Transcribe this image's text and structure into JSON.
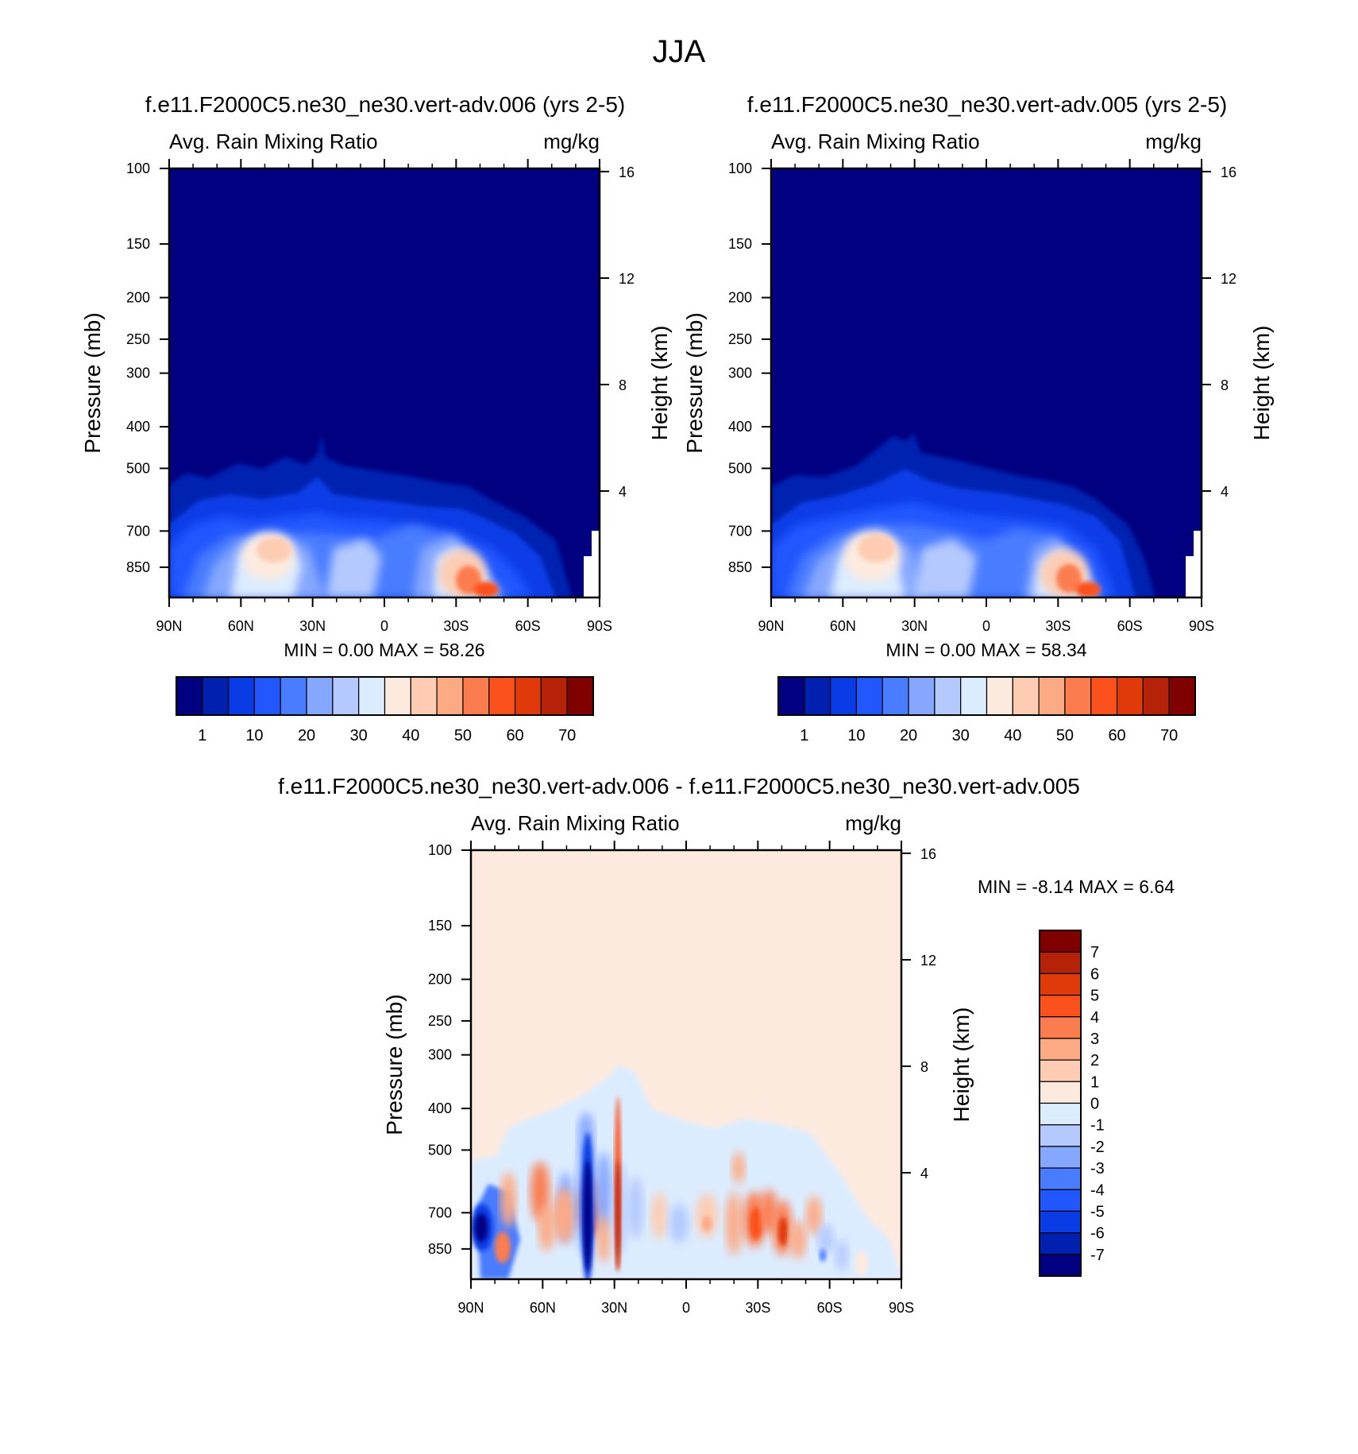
{
  "title": "JJA",
  "colors": {
    "seq": [
      "#000080",
      "#0020b0",
      "#0a3ce6",
      "#2257ff",
      "#4a7cff",
      "#86a7ff",
      "#b4c9ff",
      "#dcecff",
      "#fdeade",
      "#fdccb3",
      "#fcaa84",
      "#fb7d4f",
      "#fb511d",
      "#e03a0a",
      "#b52208",
      "#800000"
    ],
    "diff": [
      "#000080",
      "#0020b0",
      "#0a3ce6",
      "#2257ff",
      "#4a7cff",
      "#86a7ff",
      "#b4c9ff",
      "#dcecff",
      "#fdeade",
      "#fdccb3",
      "#fcaa84",
      "#fb7d4f",
      "#fb511d",
      "#e03a0a",
      "#b52208",
      "#800000"
    ]
  },
  "panels": [
    {
      "id": "panel-left",
      "case_title": "f.e11.F2000C5.ne30_ne30.vert-adv.006 (yrs 2-5)",
      "var_label": "Avg. Rain Mixing Ratio",
      "units": "mg/kg",
      "ylabel": "Pressure (mb)",
      "ylabel_right": "Height (km)",
      "stats": "MIN =   0.00  MAX =  58.26"
    },
    {
      "id": "panel-right",
      "case_title": "f.e11.F2000C5.ne30_ne30.vert-adv.005 (yrs 2-5)",
      "var_label": "Avg. Rain Mixing Ratio",
      "units": "mg/kg",
      "ylabel": "Pressure (mb)",
      "ylabel_right": "Height (km)",
      "stats": "MIN =   0.00  MAX =  58.34"
    },
    {
      "id": "panel-diff",
      "case_title": "f.e11.F2000C5.ne30_ne30.vert-adv.006 - f.e11.F2000C5.ne30_ne30.vert-adv.005",
      "var_label": "Avg. Rain Mixing Ratio",
      "units": "mg/kg",
      "ylabel": "Pressure (mb)",
      "ylabel_right": "Height (km)",
      "stats": "MIN =  -8.14  MAX =   6.64"
    }
  ],
  "chart_data": [
    {
      "type": "heatmap",
      "title": "f.e11.F2000C5.ne30_ne30.vert-adv.006 (yrs 2-5)",
      "subtitle": "Avg. Rain Mixing Ratio",
      "units": "mg/kg",
      "xlabel": "",
      "ylabel": "Pressure (mb)",
      "ylabel_right": "Height (km)",
      "x_ticks": [
        "90N",
        "60N",
        "30N",
        "0",
        "30S",
        "60S",
        "90S"
      ],
      "y_ticks": [
        "100",
        "150",
        "200",
        "250",
        "300",
        "400",
        "500",
        "700",
        "850"
      ],
      "y_right_ticks": [
        "16",
        "12",
        "8",
        "4"
      ],
      "ylim": [
        100,
        1000
      ],
      "colorbar_labels": [
        "1",
        "10",
        "20",
        "30",
        "40",
        "50",
        "60",
        "70"
      ],
      "min": 0.0,
      "max": 58.26
    },
    {
      "type": "heatmap",
      "title": "f.e11.F2000C5.ne30_ne30.vert-adv.005 (yrs 2-5)",
      "subtitle": "Avg. Rain Mixing Ratio",
      "units": "mg/kg",
      "xlabel": "",
      "ylabel": "Pressure (mb)",
      "ylabel_right": "Height (km)",
      "x_ticks": [
        "90N",
        "60N",
        "30N",
        "0",
        "30S",
        "60S",
        "90S"
      ],
      "y_ticks": [
        "100",
        "150",
        "200",
        "250",
        "300",
        "400",
        "500",
        "700",
        "850"
      ],
      "y_right_ticks": [
        "16",
        "12",
        "8",
        "4"
      ],
      "ylim": [
        100,
        1000
      ],
      "colorbar_labels": [
        "1",
        "10",
        "20",
        "30",
        "40",
        "50",
        "60",
        "70"
      ],
      "min": 0.0,
      "max": 58.34
    },
    {
      "type": "heatmap",
      "title": "f.e11.F2000C5.ne30_ne30.vert-adv.006 - f.e11.F2000C5.ne30_ne30.vert-adv.005",
      "subtitle": "Avg. Rain Mixing Ratio",
      "units": "mg/kg",
      "xlabel": "",
      "ylabel": "Pressure (mb)",
      "ylabel_right": "Height (km)",
      "x_ticks": [
        "90N",
        "60N",
        "30N",
        "0",
        "30S",
        "60S",
        "90S"
      ],
      "y_ticks": [
        "100",
        "150",
        "200",
        "250",
        "300",
        "400",
        "500",
        "700",
        "850"
      ],
      "y_right_ticks": [
        "16",
        "12",
        "8",
        "4"
      ],
      "ylim": [
        100,
        1000
      ],
      "colorbar_labels": [
        "7",
        "6",
        "5",
        "4",
        "3",
        "2",
        "1",
        "0",
        "-1",
        "-2",
        "-3",
        "-4",
        "-5",
        "-6",
        "-7"
      ],
      "min": -8.14,
      "max": 6.64
    }
  ]
}
